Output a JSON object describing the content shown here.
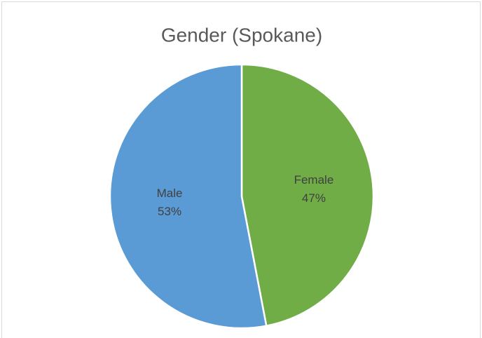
{
  "chart_data": {
    "type": "pie",
    "title": "Gender (Spokane)",
    "categories": [
      "Female",
      "Male"
    ],
    "values": [
      47,
      53
    ],
    "value_labels": [
      "47%",
      "53%"
    ],
    "colors": [
      "#70ad47",
      "#5b9bd5"
    ]
  }
}
